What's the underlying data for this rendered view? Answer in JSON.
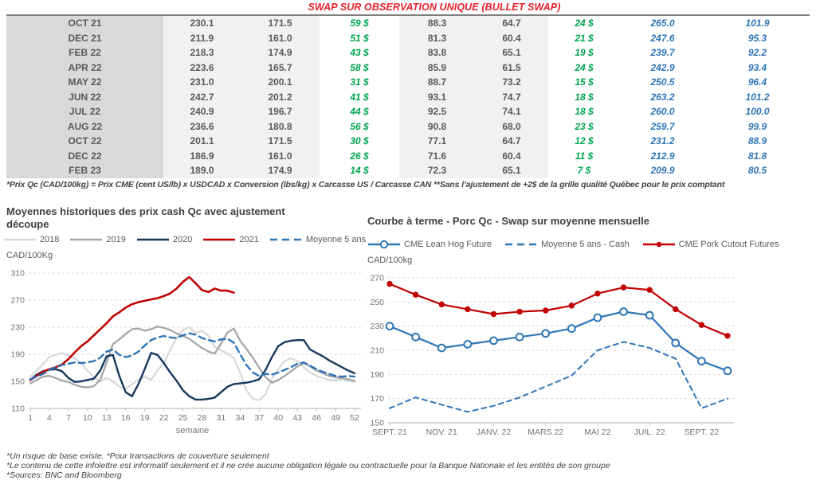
{
  "colors": {
    "title-red": "#e8212b",
    "green": "#00a550",
    "blue": "#2e75b6",
    "red-line": "#c00000",
    "navy": "#17375e",
    "gray": "#a6a6a6",
    "light-gray": "#d9d9d9"
  },
  "table": {
    "title": "SWAP SUR OBSERVATION UNIQUE (BULLET SWAP)",
    "value_styles": [
      "plain",
      "plain",
      "green",
      "plain",
      "plain",
      "green",
      "blue",
      "blue"
    ],
    "rows": [
      {
        "month": "OCT 21",
        "values": [
          "230.1",
          "171.5",
          "59 $",
          "88.3",
          "64.7",
          "24 $",
          "265.0",
          "101.9"
        ]
      },
      {
        "month": "DEC 21",
        "values": [
          "211.9",
          "161.0",
          "51 $",
          "81.3",
          "60.4",
          "21 $",
          "247.6",
          "95.3"
        ]
      },
      {
        "month": "FEB 22",
        "values": [
          "218.3",
          "174.9",
          "43 $",
          "83.8",
          "65.1",
          "19 $",
          "239.7",
          "92.2"
        ]
      },
      {
        "month": "APR 22",
        "values": [
          "223.6",
          "165.7",
          "58 $",
          "85.9",
          "61.5",
          "24 $",
          "242.9",
          "93.4"
        ]
      },
      {
        "month": "MAY 22",
        "values": [
          "231.0",
          "200.1",
          "31 $",
          "88.7",
          "73.2",
          "15 $",
          "250.5",
          "96.4"
        ]
      },
      {
        "month": "JUN 22",
        "values": [
          "242.7",
          "201.2",
          "41 $",
          "93.1",
          "74.7",
          "18 $",
          "263.2",
          "101.2"
        ]
      },
      {
        "month": "JUL 22",
        "values": [
          "240.9",
          "196.7",
          "44 $",
          "92.5",
          "74.1",
          "18 $",
          "260.0",
          "100.0"
        ]
      },
      {
        "month": "AUG 22",
        "values": [
          "236.6",
          "180.8",
          "56 $",
          "90.8",
          "68.0",
          "23 $",
          "259.7",
          "99.9"
        ]
      },
      {
        "month": "OCT 22",
        "values": [
          "201.1",
          "171.5",
          "30 $",
          "77.1",
          "64.7",
          "12 $",
          "231.2",
          "88.9"
        ]
      },
      {
        "month": "DEC 22",
        "values": [
          "186.9",
          "161.0",
          "26 $",
          "71.6",
          "60.4",
          "11 $",
          "212.9",
          "81.8"
        ]
      },
      {
        "month": "FEB 23",
        "values": [
          "189.0",
          "174.9",
          "14 $",
          "72.3",
          "65.1",
          "7 $",
          "209.9",
          "80.5"
        ]
      }
    ],
    "footnote": "*Prix Qc (CAD/100kg) = Prix CME (cent US/lb) x USDCAD x Conversion (lbs/kg) x Carcasse US / Carcasse CAN **Sans l’ajustement de +2$ de la grille qualité Québec pour le prix comptant"
  },
  "chart_data": [
    {
      "type": "line",
      "title": "Moyennes historiques des prix cash Qc avec ajustement découpe",
      "y_unit": "CAD/100Kg",
      "xlabel": "semaine",
      "ylim": [
        110,
        310
      ],
      "yticks": [
        110,
        150,
        190,
        230,
        270,
        310
      ],
      "x_range": [
        1,
        52
      ],
      "xticks": [
        1,
        4,
        7,
        10,
        13,
        16,
        19,
        22,
        25,
        28,
        31,
        34,
        37,
        40,
        43,
        46,
        49,
        52
      ],
      "grid": "dashed-horizontal",
      "legend_position": "top-center",
      "series": [
        {
          "name": "2018",
          "color": "#d9d9d9",
          "width": 2.3,
          "values": [
            157,
            166,
            176,
            186,
            189,
            192,
            188,
            184,
            176,
            166,
            156,
            150,
            155,
            150,
            142,
            139,
            146,
            152,
            157,
            152,
            166,
            177,
            196,
            214,
            226,
            230,
            222,
            225,
            218,
            201,
            196,
            191,
            184,
            163,
            137,
            124,
            122,
            131,
            154,
            168,
            180,
            184,
            180,
            171,
            163,
            158,
            155,
            152,
            152,
            153,
            151,
            149
          ]
        },
        {
          "name": "2019",
          "color": "#a6a6a6",
          "width": 2.3,
          "values": [
            147,
            152,
            157,
            158,
            155,
            151,
            149,
            145,
            142,
            141,
            143,
            152,
            178,
            205,
            212,
            220,
            227,
            228,
            225,
            227,
            231,
            229,
            226,
            221,
            217,
            213,
            206,
            199,
            194,
            191,
            206,
            222,
            228,
            210,
            198,
            185,
            170,
            156,
            148,
            152,
            158,
            165,
            172,
            177,
            172,
            166,
            162,
            158,
            156,
            155,
            153,
            151
          ]
        },
        {
          "name": "2020",
          "color": "#17375e",
          "width": 2.4,
          "values": [
            152,
            160,
            165,
            167,
            168,
            165,
            155,
            149,
            150,
            152,
            154,
            166,
            187,
            189,
            158,
            134,
            128,
            146,
            168,
            192,
            189,
            177,
            163,
            151,
            137,
            128,
            123,
            123,
            124,
            126,
            134,
            142,
            146,
            147,
            148,
            150,
            153,
            167,
            186,
            202,
            208,
            210,
            211,
            211,
            197,
            192,
            187,
            181,
            176,
            171,
            166,
            162
          ]
        },
        {
          "name": "2021",
          "color": "#c00000",
          "width": 2.6,
          "values": [
            152,
            158,
            164,
            168,
            171,
            175,
            183,
            193,
            202,
            209,
            218,
            227,
            236,
            246,
            252,
            259,
            264,
            267,
            269,
            271,
            273,
            276,
            280,
            287,
            297,
            304,
            295,
            285,
            282,
            287,
            284,
            284,
            281
          ]
        },
        {
          "name": "Moyenne 5 ans",
          "color": "#2e75b6",
          "width": 2.4,
          "dash": "8 5",
          "values": [
            153,
            157,
            161,
            167,
            171,
            174,
            176,
            178,
            177,
            178,
            180,
            185,
            194,
            197,
            189,
            186,
            188,
            194,
            203,
            211,
            215,
            217,
            215,
            214,
            218,
            221,
            219,
            214,
            211,
            209,
            212,
            213,
            207,
            190,
            174,
            163,
            158,
            161,
            160,
            163,
            167,
            171,
            176,
            178,
            173,
            168,
            164,
            161,
            158,
            157,
            158,
            157
          ]
        }
      ]
    },
    {
      "type": "line",
      "title": "Courbe à terme - Porc Qc - Swap sur moyenne mensuelle",
      "y_unit": "CAD/100kg",
      "ylim": [
        150,
        270
      ],
      "yticks": [
        150,
        170,
        190,
        210,
        230,
        250,
        270
      ],
      "n_points": 14,
      "x_labels": [
        "SEPT. 21",
        "NOV. 21",
        "JANV. 22",
        "MARS 22",
        "MAI 22",
        "JUIL. 22",
        "SEPT. 22"
      ],
      "x_label_indices": [
        0,
        2,
        4,
        6,
        8,
        10,
        12
      ],
      "grid": "dashed-horizontal",
      "legend_position": "top-left",
      "series": [
        {
          "name": "CME Lean Hog Future",
          "color": "#2e75b6",
          "width": 2.2,
          "marker": "open-circle",
          "values": [
            230,
            221,
            212,
            215,
            218,
            221,
            224,
            228,
            237,
            242,
            239,
            216,
            201,
            193
          ]
        },
        {
          "name": "Moyenne 5 ans - Cash",
          "color": "#2e75b6",
          "width": 2,
          "dash": "6 5",
          "values": [
            162,
            171,
            165,
            159,
            164,
            171,
            180,
            189,
            210,
            217,
            212,
            203,
            162,
            170
          ]
        },
        {
          "name": "CME Pork Cutout Futures",
          "color": "#c00000",
          "width": 2.2,
          "marker": "filled-circle",
          "values": [
            265,
            256,
            248,
            244,
            240,
            242,
            243,
            247,
            257,
            262,
            260,
            244,
            231,
            222
          ]
        }
      ]
    }
  ],
  "footnotes": [
    "*Un risque de base existe.  *Pour transactions de couverture seulement",
    "*Le contenu de cette infolettre est informatif seulement et il ne crée aucune obligation légale ou contractuelle pour la Banque Nationale et les entités de son groupe",
    "*Sources: BNC and Bloomberg"
  ]
}
